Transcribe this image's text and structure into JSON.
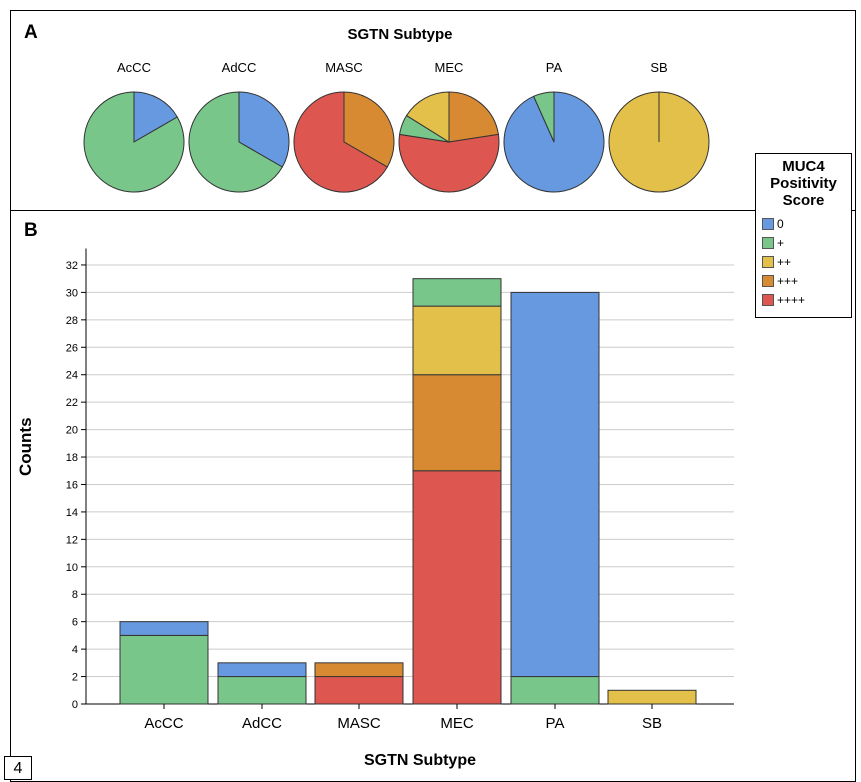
{
  "panel_labels": {
    "a": "A",
    "b": "B"
  },
  "page_number": "4",
  "colors": {
    "0": "#6699e0",
    "+": "#78c68a",
    "++": "#e3c04a",
    "+++": "#d88a32",
    "++++": "#de5650"
  },
  "legend": {
    "title": "MUC4 Positivity Score",
    "title_lines": [
      "MUC4",
      "Positivity",
      "Score"
    ],
    "items": [
      "0",
      "+",
      "++",
      "+++",
      "++++"
    ]
  },
  "chart_data": [
    {
      "type": "pie",
      "title": "SGTN Subtype",
      "categories": [
        "AcCC",
        "AdCC",
        "MASC",
        "MEC",
        "PA",
        "SB"
      ],
      "series": [
        {
          "name": "0",
          "values": [
            1,
            1,
            0,
            0,
            28,
            0
          ]
        },
        {
          "name": "+",
          "values": [
            5,
            2,
            0,
            2,
            2,
            0
          ]
        },
        {
          "name": "++",
          "values": [
            0,
            0,
            0,
            5,
            0,
            1
          ]
        },
        {
          "name": "+++",
          "values": [
            0,
            0,
            1,
            7,
            0,
            0
          ]
        },
        {
          "name": "++++",
          "values": [
            0,
            0,
            2,
            17,
            0,
            0
          ]
        }
      ]
    },
    {
      "type": "bar",
      "stacked": true,
      "categories": [
        "AcCC",
        "AdCC",
        "MASC",
        "MEC",
        "PA",
        "SB"
      ],
      "xlabel": "SGTN Subtype",
      "ylabel": "Counts",
      "ylim": [
        0,
        33
      ],
      "yticks": [
        0,
        2,
        4,
        6,
        8,
        10,
        12,
        14,
        16,
        18,
        20,
        22,
        24,
        26,
        28,
        30,
        32
      ],
      "grid": true,
      "legend": "right",
      "series": [
        {
          "name": "++++",
          "values": [
            0,
            0,
            2,
            17,
            0,
            0
          ]
        },
        {
          "name": "+++",
          "values": [
            0,
            0,
            1,
            7,
            0,
            0
          ]
        },
        {
          "name": "++",
          "values": [
            0,
            0,
            0,
            5,
            0,
            1
          ]
        },
        {
          "name": "+",
          "values": [
            5,
            2,
            0,
            2,
            2,
            0
          ]
        },
        {
          "name": "0",
          "values": [
            1,
            1,
            0,
            0,
            28,
            0
          ]
        }
      ]
    }
  ]
}
